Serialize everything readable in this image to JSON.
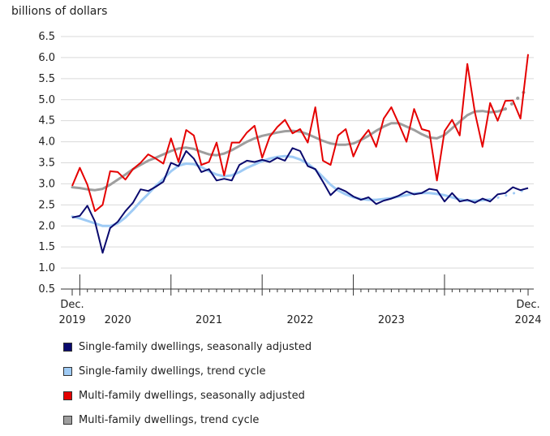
{
  "chart_data": {
    "type": "line",
    "ylabel": "billions of dollars",
    "ylim": [
      0.5,
      6.5
    ],
    "yticks": [
      "0.5",
      "1.0",
      "1.5",
      "2.0",
      "2.5",
      "3.0",
      "3.5",
      "4.0",
      "4.5",
      "5.0",
      "5.5",
      "6.0",
      "6.5"
    ],
    "x_start": "2019-12",
    "x_end": "2024-12",
    "xtick_labels": [
      {
        "at": "2019-12",
        "line1": "Dec.",
        "line2": "2019"
      },
      {
        "at": "2020-06",
        "line1": "",
        "line2": "2020"
      },
      {
        "at": "2021-06",
        "line1": "",
        "line2": "2021"
      },
      {
        "at": "2022-06",
        "line1": "",
        "line2": "2022"
      },
      {
        "at": "2023-06",
        "line1": "",
        "line2": "2023"
      },
      {
        "at": "2024-12",
        "line1": "Dec.",
        "line2": "2024"
      }
    ],
    "grid": true,
    "legend_placement": "bottom",
    "series": [
      {
        "name": "Single-family dwellings, seasonally adjusted",
        "color": "#0a0a6e",
        "style": "solid",
        "values": [
          2.2,
          2.24,
          2.48,
          2.1,
          1.36,
          1.95,
          2.1,
          2.35,
          2.55,
          2.87,
          2.83,
          2.93,
          3.05,
          3.5,
          3.42,
          3.78,
          3.6,
          3.28,
          3.35,
          3.08,
          3.12,
          3.08,
          3.45,
          3.55,
          3.52,
          3.57,
          3.52,
          3.62,
          3.55,
          3.85,
          3.78,
          3.42,
          3.35,
          3.05,
          2.73,
          2.9,
          2.82,
          2.7,
          2.62,
          2.68,
          2.52,
          2.6,
          2.65,
          2.72,
          2.82,
          2.75,
          2.78,
          2.88,
          2.85,
          2.58,
          2.78,
          2.58,
          2.62,
          2.55,
          2.65,
          2.58,
          2.75,
          2.78,
          2.92,
          2.85,
          2.9
        ]
      },
      {
        "name": "Single-family dwellings, trend cycle",
        "color": "#9fcbf5",
        "style": "solid",
        "values": [
          2.22,
          2.18,
          2.12,
          2.06,
          2.0,
          2.0,
          2.06,
          2.2,
          2.38,
          2.58,
          2.76,
          2.95,
          3.12,
          3.3,
          3.43,
          3.48,
          3.47,
          3.4,
          3.3,
          3.22,
          3.18,
          3.2,
          3.28,
          3.38,
          3.46,
          3.54,
          3.6,
          3.64,
          3.66,
          3.64,
          3.58,
          3.48,
          3.34,
          3.16,
          2.98,
          2.84,
          2.75,
          2.68,
          2.64,
          2.62,
          2.62,
          2.64,
          2.66,
          2.7,
          2.73,
          2.77,
          2.78,
          2.78,
          2.76,
          2.73,
          2.68,
          2.63,
          2.6,
          2.6,
          2.61,
          2.63,
          2.67,
          2.72,
          2.77,
          2.82,
          2.88
        ]
      },
      {
        "name": "Multi-family dwellings, seasonally adjusted",
        "color": "#e50000",
        "style": "solid",
        "values": [
          2.95,
          3.38,
          2.98,
          2.35,
          2.5,
          3.3,
          3.28,
          3.1,
          3.35,
          3.5,
          3.7,
          3.6,
          3.48,
          4.08,
          3.52,
          4.28,
          4.15,
          3.45,
          3.52,
          3.98,
          3.2,
          3.98,
          3.98,
          4.22,
          4.38,
          3.62,
          4.12,
          4.35,
          4.52,
          4.2,
          4.3,
          3.98,
          4.82,
          3.55,
          3.45,
          4.15,
          4.3,
          3.65,
          4.05,
          4.28,
          3.88,
          4.55,
          4.82,
          4.42,
          4.0,
          4.78,
          4.3,
          4.25,
          3.08,
          4.25,
          4.52,
          4.15,
          5.85,
          4.7,
          3.88,
          4.92,
          4.5,
          4.97,
          4.98,
          4.55,
          6.08
        ]
      },
      {
        "name": "Multi-family dwellings, trend cycle",
        "color": "#9e9e9e",
        "style": "solid",
        "values": [
          2.92,
          2.9,
          2.87,
          2.85,
          2.88,
          2.98,
          3.1,
          3.22,
          3.35,
          3.45,
          3.55,
          3.62,
          3.7,
          3.78,
          3.84,
          3.86,
          3.83,
          3.76,
          3.7,
          3.68,
          3.72,
          3.8,
          3.9,
          4.0,
          4.08,
          4.14,
          4.18,
          4.22,
          4.25,
          4.26,
          4.24,
          4.18,
          4.1,
          4.02,
          3.96,
          3.93,
          3.93,
          3.96,
          4.04,
          4.14,
          4.26,
          4.36,
          4.44,
          4.44,
          4.36,
          4.28,
          4.18,
          4.1,
          4.08,
          4.16,
          4.32,
          4.48,
          4.63,
          4.72,
          4.73,
          4.7,
          4.72,
          4.78,
          null,
          null,
          null
        ],
        "dotted_values": [
          null,
          null,
          null,
          null,
          null,
          null,
          null,
          null,
          null,
          null,
          null,
          null,
          null,
          null,
          null,
          null,
          null,
          null,
          null,
          null,
          null,
          null,
          null,
          null,
          null,
          null,
          null,
          null,
          null,
          null,
          null,
          null,
          null,
          null,
          null,
          null,
          null,
          null,
          null,
          null,
          null,
          null,
          null,
          null,
          null,
          null,
          null,
          null,
          null,
          null,
          null,
          null,
          null,
          null,
          null,
          null,
          null,
          4.78,
          4.92,
          5.1,
          5.28
        ]
      }
    ],
    "single_trend_dotted_from": 55
  },
  "legend": [
    {
      "label": "Single-family dwellings, seasonally adjusted",
      "color": "#0a0a6e"
    },
    {
      "label": "Single-family dwellings, trend cycle",
      "color": "#9fcbf5"
    },
    {
      "label": "Multi-family dwellings, seasonally adjusted",
      "color": "#e50000"
    },
    {
      "label": "Multi-family dwellings, trend cycle",
      "color": "#9e9e9e"
    }
  ]
}
